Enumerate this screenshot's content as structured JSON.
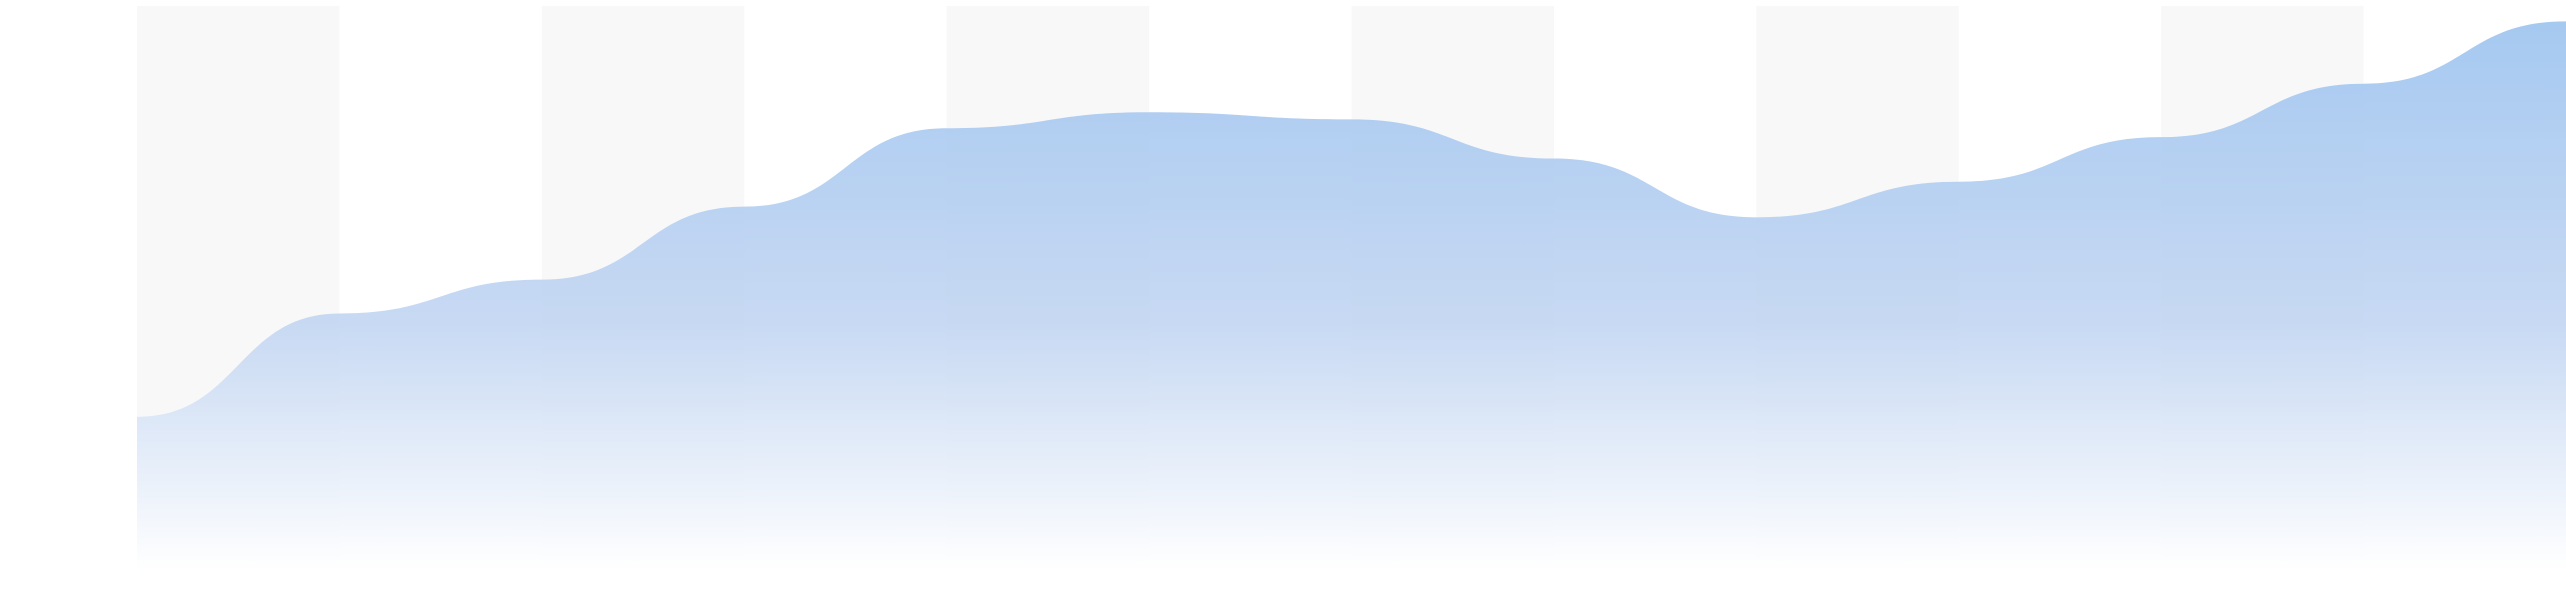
{
  "chart_data": {
    "type": "area",
    "title": "",
    "xlabel": "",
    "ylabel": "",
    "x": [
      0,
      1,
      2,
      3,
      4,
      5,
      6,
      7,
      8,
      9,
      10,
      11,
      12
    ],
    "series": [
      {
        "values": [
          8.6,
          14.4,
          16.3,
          20.4,
          24.8,
          25.7,
          25.3,
          23.1,
          19.8,
          21.8,
          24.3,
          27.3,
          30.8
        ]
      }
    ],
    "ylim": [
      0,
      32
    ],
    "grid": false,
    "legend": "none",
    "column_bands": true,
    "colors": {
      "area_top": "#a3c7f0",
      "area_mid": "#c3d6f2",
      "area_bottom": "#ffffff",
      "band": "#f8f8f8"
    }
  }
}
